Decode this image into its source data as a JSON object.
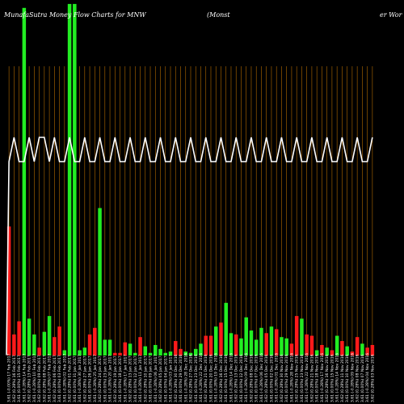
{
  "title": {
    "left": "MunafaSutra  Money Flow  Charts for MNW",
    "middle": "(Monst",
    "right": "er Wor"
  },
  "colors": {
    "background": "#000000",
    "up": "#22ee22",
    "down": "#ff1a1a",
    "grid": "#b36b00",
    "price_line": "#ffffff"
  },
  "chart_data": {
    "type": "bar",
    "title": "MunafaSutra  Money Flow  Charts for MNW (Monster Worldwide)",
    "categories": [
      "Fri 17 Feb 2017",
      "Thu 16 Feb 2017",
      "Wed 15 Feb 2017",
      "Tue 14 Feb 2017",
      "Mon 13 Feb 2017",
      "Fri 10 Feb 2017",
      "Thu 09 Feb 2017",
      "Wed 08 Feb 2017",
      "Tue 07 Feb 2017",
      "Mon 06 Feb 2017",
      "Fri 03 Feb 2017",
      "Thu 02 Feb 2017",
      "Wed 01 Feb 2017",
      "Tue 31 Jan 2017",
      "Mon 30 Jan 2017",
      "Fri 27 Jan 2017",
      "Thu 26 Jan 2017",
      "Wed 25 Jan 2017",
      "Tue 24 Jan 2017",
      "Mon 23 Jan 2017",
      "Fri 20 Jan 2017",
      "Thu 19 Jan 2017",
      "Wed 18 Jan 2017",
      "Tue 17 Jan 2017",
      "Fri 13 Jan 2017",
      "Thu 12 Jan 2017",
      "Wed 11 Jan 2017",
      "Tue 10 Jan 2017",
      "Mon 09 Jan 2017",
      "Fri 06 Jan 2017",
      "Thu 05 Jan 2017",
      "Wed 04 Jan 2017",
      "Tue 03 Jan 2017",
      "Fri 30 Dec 2016",
      "Thu 29 Dec 2016",
      "Wed 28 Dec 2016",
      "Tue 27 Dec 2016",
      "Fri 23 Dec 2016",
      "Thu 22 Dec 2016",
      "Wed 21 Dec 2016",
      "Tue 20 Dec 2016",
      "Mon 19 Dec 2016",
      "Fri 16 Dec 2016",
      "Thu 15 Dec 2016",
      "Wed 14 Dec 2016",
      "Tue 13 Dec 2016",
      "Mon 12 Dec 2016",
      "Fri 09 Dec 2016",
      "Thu 08 Dec 2016",
      "Wed 07 Dec 2016",
      "Tue 06 Dec 2016",
      "Mon 05 Dec 2016",
      "Fri 02 Dec 2016",
      "Thu 01 Dec 2016",
      "Wed 30 Nov 2016",
      "Tue 29 Nov 2016",
      "Mon 28 Nov 2016",
      "Fri 25 Nov 2016",
      "Wed 23 Nov 2016",
      "Tue 22 Nov 2016",
      "Mon 21 Nov 2016",
      "Fri 18 Nov 2016",
      "Thu 17 Nov 2016",
      "Wed 16 Nov 2016",
      "Tue 15 Nov 2016",
      "Mon 14 Nov 2016",
      "Fri 11 Nov 2016",
      "Thu 10 Nov 2016",
      "Wed 09 Nov 2016",
      "Tue 08 Nov 2016",
      "Mon 07 Nov 2016",
      "Fri 04 Nov 2016",
      "Thu 03 Nov 2016"
    ],
    "tick_labels": [
      "3.61 (-0.00%) 17 Feb 2017",
      "3.62 (0.28%) 16 Feb 2017",
      "3.61 (0.00%) 15 Feb 2017",
      "3.61 (-0.28%) 14 Feb 2017",
      "3.62 (0.28%) 13 Feb 2017",
      "3.61 (-0.28%) 10 Feb 2017",
      "3.62 (0.00%) 09 Feb 2017",
      "3.62 (0.28%) 08 Feb 2017",
      "3.61 (-0.28%) 07 Feb 2017",
      "3.62 (0.28%) 06 Feb 2017",
      "3.61 (0.00%) 03 Feb 2017",
      "3.61 (-0.28%) 02 Feb 2017",
      "3.62 (0.28%) 01 Feb 2017",
      "3.61 (0.00%) 31 Jan 2017",
      "3.61 (-0.28%) 30 Jan 2017",
      "3.62 (0.28%) 27 Jan 2017",
      "3.61 (0.00%) 26 Jan 2017",
      "3.61 (-0.28%) 25 Jan 2017",
      "3.62 (0.28%) 24 Jan 2017",
      "3.61 (0.00%) 23 Jan 2017",
      "3.61 (-0.28%) 20 Jan 2017",
      "3.62 (0.28%) 19 Jan 2017",
      "3.61 (0.00%) 18 Jan 2017",
      "3.61 (-0.28%) 17 Jan 2017",
      "3.62 (0.28%) 13 Jan 2017",
      "3.61 (0.00%) 12 Jan 2017",
      "3.61 (-0.28%) 11 Jan 2017",
      "3.62 (0.28%) 10 Jan 2017",
      "3.61 (0.00%) 09 Jan 2017",
      "3.61 (-0.28%) 06 Jan 2017",
      "3.62 (0.28%) 05 Jan 2017",
      "3.61 (0.00%) 04 Jan 2017",
      "3.61 (-0.28%) 03 Jan 2017",
      "3.62 (0.28%) 30 Dec 2016",
      "3.61 (0.00%) 29 Dec 2016",
      "3.61 (-0.28%) 28 Dec 2016",
      "3.62 (0.28%) 27 Dec 2016",
      "3.61 (0.00%) 23 Dec 2016",
      "3.61 (-0.28%) 22 Dec 2016",
      "3.62 (0.28%) 21 Dec 2016",
      "3.61 (0.00%) 20 Dec 2016",
      "3.61 (-0.28%) 19 Dec 2016",
      "3.62 (0.28%) 16 Dec 2016",
      "3.61 (0.00%) 15 Dec 2016",
      "3.61 (-0.28%) 14 Dec 2016",
      "3.62 (0.28%) 13 Dec 2016",
      "3.61 (0.00%) 12 Dec 2016",
      "3.61 (-0.28%) 09 Dec 2016",
      "3.62 (0.28%) 08 Dec 2016",
      "3.61 (0.00%) 07 Dec 2016",
      "3.61 (-0.28%) 06 Dec 2016",
      "3.62 (0.28%) 05 Dec 2016",
      "3.61 (0.00%) 02 Dec 2016",
      "3.61 (-0.28%) 01 Dec 2016",
      "3.62 (0.28%) 30 Nov 2016",
      "3.61 (0.00%) 29 Nov 2016",
      "3.61 (-0.28%) 28 Nov 2016",
      "3.62 (0.28%) 25 Nov 2016",
      "3.61 (0.00%) 23 Nov 2016",
      "3.61 (-0.28%) 22 Nov 2016",
      "3.62 (0.28%) 21 Nov 2016",
      "3.61 (0.00%) 18 Nov 2016",
      "3.61 (-0.28%) 17 Nov 2016",
      "3.62 (0.28%) 16 Nov 2016",
      "3.61 (0.00%) 15 Nov 2016",
      "3.61 (-0.28%) 14 Nov 2016",
      "3.62 (0.28%) 11 Nov 2016",
      "3.61 (0.00%) 10 Nov 2016",
      "3.61 (-0.28%) 09 Nov 2016",
      "3.62 (0.28%) 08 Nov 2016",
      "3.61 (0.00%) 07 Nov 2016",
      "3.61 (-0.28%) 04 Nov 2016",
      "3.62 (0.28%) 03 Nov 2016"
    ],
    "volume_values": [
      98,
      16,
      26,
      264,
      28,
      16,
      6,
      18,
      30,
      14,
      22,
      4,
      267,
      267,
      4,
      6,
      16,
      21,
      112,
      12,
      12,
      2,
      2,
      10,
      9,
      2,
      14,
      7,
      2,
      8,
      5,
      2,
      3,
      11,
      5,
      3,
      2,
      5,
      9,
      15,
      15,
      22,
      25,
      40,
      17,
      16,
      13,
      29,
      19,
      12,
      21,
      17,
      22,
      20,
      14,
      13,
      9,
      30,
      28,
      16,
      15,
      4,
      8,
      6,
      4,
      15,
      11,
      7,
      3,
      14,
      9,
      6,
      8
    ],
    "volume_colors": [
      "down",
      "down",
      "down",
      "up",
      "up",
      "up",
      "down",
      "up",
      "up",
      "down",
      "down",
      "up",
      "up",
      "up",
      "up",
      "up",
      "down",
      "down",
      "up",
      "up",
      "up",
      "down",
      "down",
      "down",
      "up",
      "up",
      "down",
      "up",
      "up",
      "up",
      "up",
      "up",
      "up",
      "down",
      "down",
      "up",
      "up",
      "up",
      "up",
      "down",
      "down",
      "up",
      "down",
      "up",
      "up",
      "down",
      "up",
      "up",
      "up",
      "up",
      "up",
      "down",
      "up",
      "down",
      "up",
      "up",
      "down",
      "down",
      "up",
      "down",
      "down",
      "up",
      "down",
      "up",
      "down",
      "up",
      "down",
      "up",
      "down",
      "down",
      "up",
      "down",
      "down"
    ],
    "price_values": [
      3.61,
      3.62,
      3.61,
      3.61,
      3.62,
      3.61,
      3.62,
      3.62,
      3.61,
      3.62,
      3.61,
      3.61,
      3.62,
      3.61,
      3.61,
      3.62,
      3.61,
      3.61,
      3.62,
      3.61,
      3.61,
      3.62,
      3.61,
      3.61,
      3.62,
      3.61,
      3.61,
      3.62,
      3.61,
      3.61,
      3.62,
      3.61,
      3.61,
      3.62,
      3.61,
      3.61,
      3.62,
      3.61,
      3.61,
      3.62,
      3.61,
      3.61,
      3.62,
      3.61,
      3.61,
      3.62,
      3.61,
      3.61,
      3.62,
      3.61,
      3.61,
      3.62,
      3.61,
      3.61,
      3.62,
      3.61,
      3.61,
      3.62,
      3.61,
      3.61,
      3.62,
      3.61,
      3.61,
      3.62,
      3.61,
      3.61,
      3.62,
      3.61,
      3.61,
      3.62,
      3.61,
      3.61,
      3.62
    ],
    "ylim": [
      0,
      270
    ],
    "grid": true
  }
}
